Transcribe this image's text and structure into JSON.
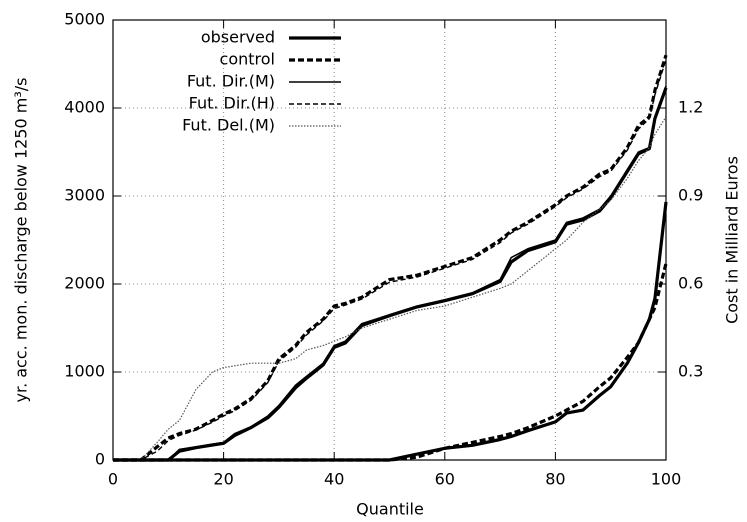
{
  "chart_data": {
    "type": "line",
    "x_label": "Quantile",
    "y_label": "yr. acc. mon. discharge below 1250 m³/s",
    "y2_label": "Cost in Milliard Euros",
    "x": [
      0,
      5,
      8,
      10,
      12,
      15,
      18,
      20,
      22,
      25,
      28,
      30,
      33,
      35,
      38,
      40,
      42,
      45,
      50,
      55,
      60,
      65,
      70,
      72,
      75,
      80,
      82,
      85,
      88,
      90,
      93,
      95,
      97,
      98,
      100
    ],
    "xlim": [
      0,
      100
    ],
    "xticks": [
      0,
      20,
      40,
      60,
      80,
      100
    ],
    "ylim": [
      0,
      5000
    ],
    "yticks": [
      0,
      1000,
      2000,
      3000,
      4000,
      5000
    ],
    "y2lim": [
      0,
      1.5
    ],
    "y2ticks": [
      0.3,
      0.6,
      0.9,
      1.2
    ],
    "grid": true,
    "legend": "upper left",
    "series": [
      {
        "name": "observed",
        "color": "#000000",
        "width": 3.2,
        "dash": "none",
        "values": [
          0,
          0,
          0,
          0,
          100,
          140,
          170,
          190,
          280,
          370,
          480,
          600,
          820,
          930,
          1080,
          1280,
          1330,
          1530,
          1640,
          1740,
          1810,
          1890,
          2030,
          2250,
          2380,
          2480,
          2680,
          2730,
          2830,
          2980,
          3280,
          3480,
          3540,
          3880,
          4230
        ]
      },
      {
        "name": "control",
        "color": "#000000",
        "width": 3.2,
        "dash": "6,3",
        "values": [
          0,
          0,
          150,
          250,
          300,
          350,
          450,
          520,
          580,
          700,
          900,
          1150,
          1300,
          1450,
          1600,
          1750,
          1780,
          1850,
          2050,
          2100,
          2200,
          2300,
          2500,
          2600,
          2700,
          2900,
          3000,
          3100,
          3250,
          3300,
          3550,
          3800,
          3900,
          4200,
          4600
        ]
      },
      {
        "name": "Fut. Dir.(M)",
        "color": "#000000",
        "width": 1.6,
        "dash": "none",
        "values": [
          0,
          0,
          0,
          0,
          120,
          150,
          180,
          200,
          300,
          380,
          500,
          620,
          850,
          950,
          1100,
          1300,
          1350,
          1550,
          1650,
          1750,
          1820,
          1900,
          2050,
          2300,
          2400,
          2500,
          2700,
          2750,
          2850,
          3000,
          3300,
          3500,
          3550,
          3900,
          4250
        ]
      },
      {
        "name": "Fut. Dir.(H)",
        "color": "#000000",
        "width": 1.4,
        "dash": "5,3",
        "values": [
          0,
          0,
          100,
          220,
          280,
          340,
          430,
          500,
          560,
          680,
          880,
          1120,
          1280,
          1420,
          1580,
          1720,
          1760,
          1830,
          2020,
          2080,
          2180,
          2280,
          2470,
          2580,
          2680,
          2880,
          2980,
          3080,
          3220,
          3280,
          3520,
          3760,
          3880,
          4150,
          4550
        ]
      },
      {
        "name": "Fut. Del.(M)",
        "color": "#555555",
        "width": 1.2,
        "dash": "1.5,1.5",
        "values": [
          0,
          0,
          200,
          350,
          450,
          800,
          1000,
          1050,
          1070,
          1100,
          1100,
          1100,
          1150,
          1250,
          1300,
          1350,
          1400,
          1500,
          1600,
          1700,
          1750,
          1850,
          1950,
          2000,
          2150,
          2400,
          2500,
          2700,
          2850,
          2950,
          3200,
          3400,
          3550,
          3700,
          3900
        ]
      },
      {
        "color": "#000000",
        "width": 3.2,
        "dash": "none",
        "axis": "y2",
        "values": [
          0,
          0,
          0,
          0,
          0,
          0,
          0,
          0,
          0,
          0,
          0,
          0,
          0,
          0,
          0,
          0,
          0,
          0,
          0,
          0.02,
          0.04,
          0.05,
          0.07,
          0.08,
          0.1,
          0.13,
          0.16,
          0.17,
          0.22,
          0.25,
          0.33,
          0.4,
          0.48,
          0.55,
          0.88
        ]
      },
      {
        "color": "#000000",
        "width": 3.2,
        "dash": "6,3",
        "axis": "y2",
        "values": [
          0,
          0,
          0,
          0,
          0,
          0,
          0,
          0,
          0,
          0,
          0,
          0,
          0,
          0,
          0,
          0,
          0,
          0,
          0,
          0.01,
          0.04,
          0.06,
          0.08,
          0.09,
          0.11,
          0.15,
          0.17,
          0.2,
          0.25,
          0.28,
          0.35,
          0.4,
          0.48,
          0.52,
          0.67
        ]
      }
    ]
  }
}
